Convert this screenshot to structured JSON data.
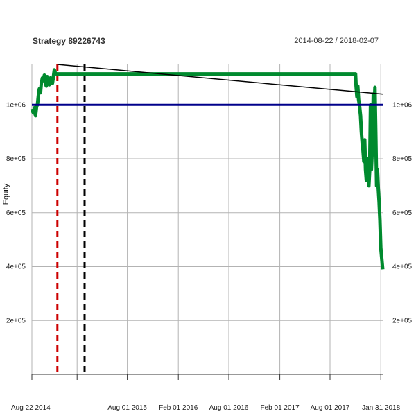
{
  "chart_data": {
    "type": "line",
    "title": "Strategy 89226743",
    "date_range": "2014-08-22 / 2018-02-07",
    "ylabel": "Equity",
    "xlabel": "",
    "ylim": [
      0,
      1150000
    ],
    "y_ticks": [
      {
        "value": 200000,
        "label": "2e+05"
      },
      {
        "value": 400000,
        "label": "4e+05"
      },
      {
        "value": 600000,
        "label": "6e+05"
      },
      {
        "value": 800000,
        "label": "8e+05"
      },
      {
        "value": 1000000,
        "label": "1e+06"
      }
    ],
    "x_start": "2014-08-22",
    "x_end": "2018-02-07",
    "x_ticks": [
      {
        "date": "2014-08-22",
        "label": "Aug 22 2014"
      },
      {
        "date": "2015-08-01",
        "label": "Aug 01 2015"
      },
      {
        "date": "2016-02-01",
        "label": "Feb 01 2016"
      },
      {
        "date": "2016-08-01",
        "label": "Aug 01 2016"
      },
      {
        "date": "2017-02-01",
        "label": "Feb 01 2017"
      },
      {
        "date": "2017-08-01",
        "label": "Aug 01 2017"
      },
      {
        "date": "2018-01-31",
        "label": "Jan 31 2018"
      }
    ],
    "x_minor_ticks": [
      "2015-02-01"
    ],
    "grid": true,
    "series": [
      {
        "kind": "equity",
        "color": "#008a2e",
        "points": [
          [
            "2014-08-22",
            985000
          ],
          [
            "2014-08-25",
            975000
          ],
          [
            "2014-08-28",
            970000
          ],
          [
            "2014-09-01",
            990000
          ],
          [
            "2014-09-04",
            960000
          ],
          [
            "2014-09-08",
            995000
          ],
          [
            "2014-09-11",
            1000000
          ],
          [
            "2014-09-15",
            1040000
          ],
          [
            "2014-09-18",
            1060000
          ],
          [
            "2014-09-22",
            1045000
          ],
          [
            "2014-09-25",
            1080000
          ],
          [
            "2014-09-29",
            1100000
          ],
          [
            "2014-10-02",
            1090000
          ],
          [
            "2014-10-06",
            1110000
          ],
          [
            "2014-10-10",
            1080000
          ],
          [
            "2014-10-13",
            1070000
          ],
          [
            "2014-10-16",
            1105000
          ],
          [
            "2014-10-20",
            1090000
          ],
          [
            "2014-10-24",
            1075000
          ],
          [
            "2014-10-28",
            1100000
          ],
          [
            "2014-11-01",
            1085000
          ],
          [
            "2014-11-04",
            1080000
          ],
          [
            "2014-11-07",
            1100000
          ],
          [
            "2014-11-11",
            1130000
          ],
          [
            "2014-11-14",
            1120000
          ],
          [
            "2014-11-18",
            1115000
          ],
          [
            "2014-11-22",
            1115000
          ],
          [
            "2017-11-01",
            1115000
          ],
          [
            "2017-11-03",
            1070000
          ],
          [
            "2017-11-06",
            1030000
          ],
          [
            "2017-11-09",
            1070000
          ],
          [
            "2017-11-12",
            1020000
          ],
          [
            "2017-11-15",
            1000000
          ],
          [
            "2017-11-19",
            960000
          ],
          [
            "2017-11-22",
            900000
          ],
          [
            "2017-11-25",
            860000
          ],
          [
            "2017-11-28",
            830000
          ],
          [
            "2017-12-01",
            790000
          ],
          [
            "2017-12-04",
            870000
          ],
          [
            "2017-12-07",
            760000
          ],
          [
            "2017-12-10",
            720000
          ],
          [
            "2017-12-13",
            800000
          ],
          [
            "2017-12-16",
            740000
          ],
          [
            "2017-12-19",
            700000
          ],
          [
            "2017-12-22",
            760000
          ],
          [
            "2017-12-25",
            1000000
          ],
          [
            "2017-12-28",
            760000
          ],
          [
            "2018-01-01",
            850000
          ],
          [
            "2018-01-04",
            1040000
          ],
          [
            "2018-01-07",
            980000
          ],
          [
            "2018-01-10",
            1065000
          ],
          [
            "2018-01-13",
            890000
          ],
          [
            "2018-01-16",
            700000
          ],
          [
            "2018-01-19",
            760000
          ],
          [
            "2018-01-22",
            690000
          ],
          [
            "2018-01-25",
            640000
          ],
          [
            "2018-01-28",
            570000
          ],
          [
            "2018-01-31",
            470000
          ],
          [
            "2018-02-07",
            390000
          ]
        ]
      },
      {
        "kind": "trend",
        "color": "#000000",
        "points": [
          [
            "2014-11-22",
            1150000
          ],
          [
            "2018-02-07",
            1040000
          ]
        ]
      },
      {
        "kind": "baseline",
        "color": "#00008b",
        "points": [
          [
            "2014-08-22",
            1000000
          ],
          [
            "2018-02-07",
            1000000
          ]
        ]
      }
    ],
    "vlines": [
      {
        "date": "2014-11-22",
        "color": "#cc0000",
        "style": "dashed",
        "from": 0,
        "to": 1150000
      },
      {
        "date": "2015-02-28",
        "color": "#000000",
        "style": "dashed",
        "from": 0,
        "to": 1150000
      }
    ]
  }
}
